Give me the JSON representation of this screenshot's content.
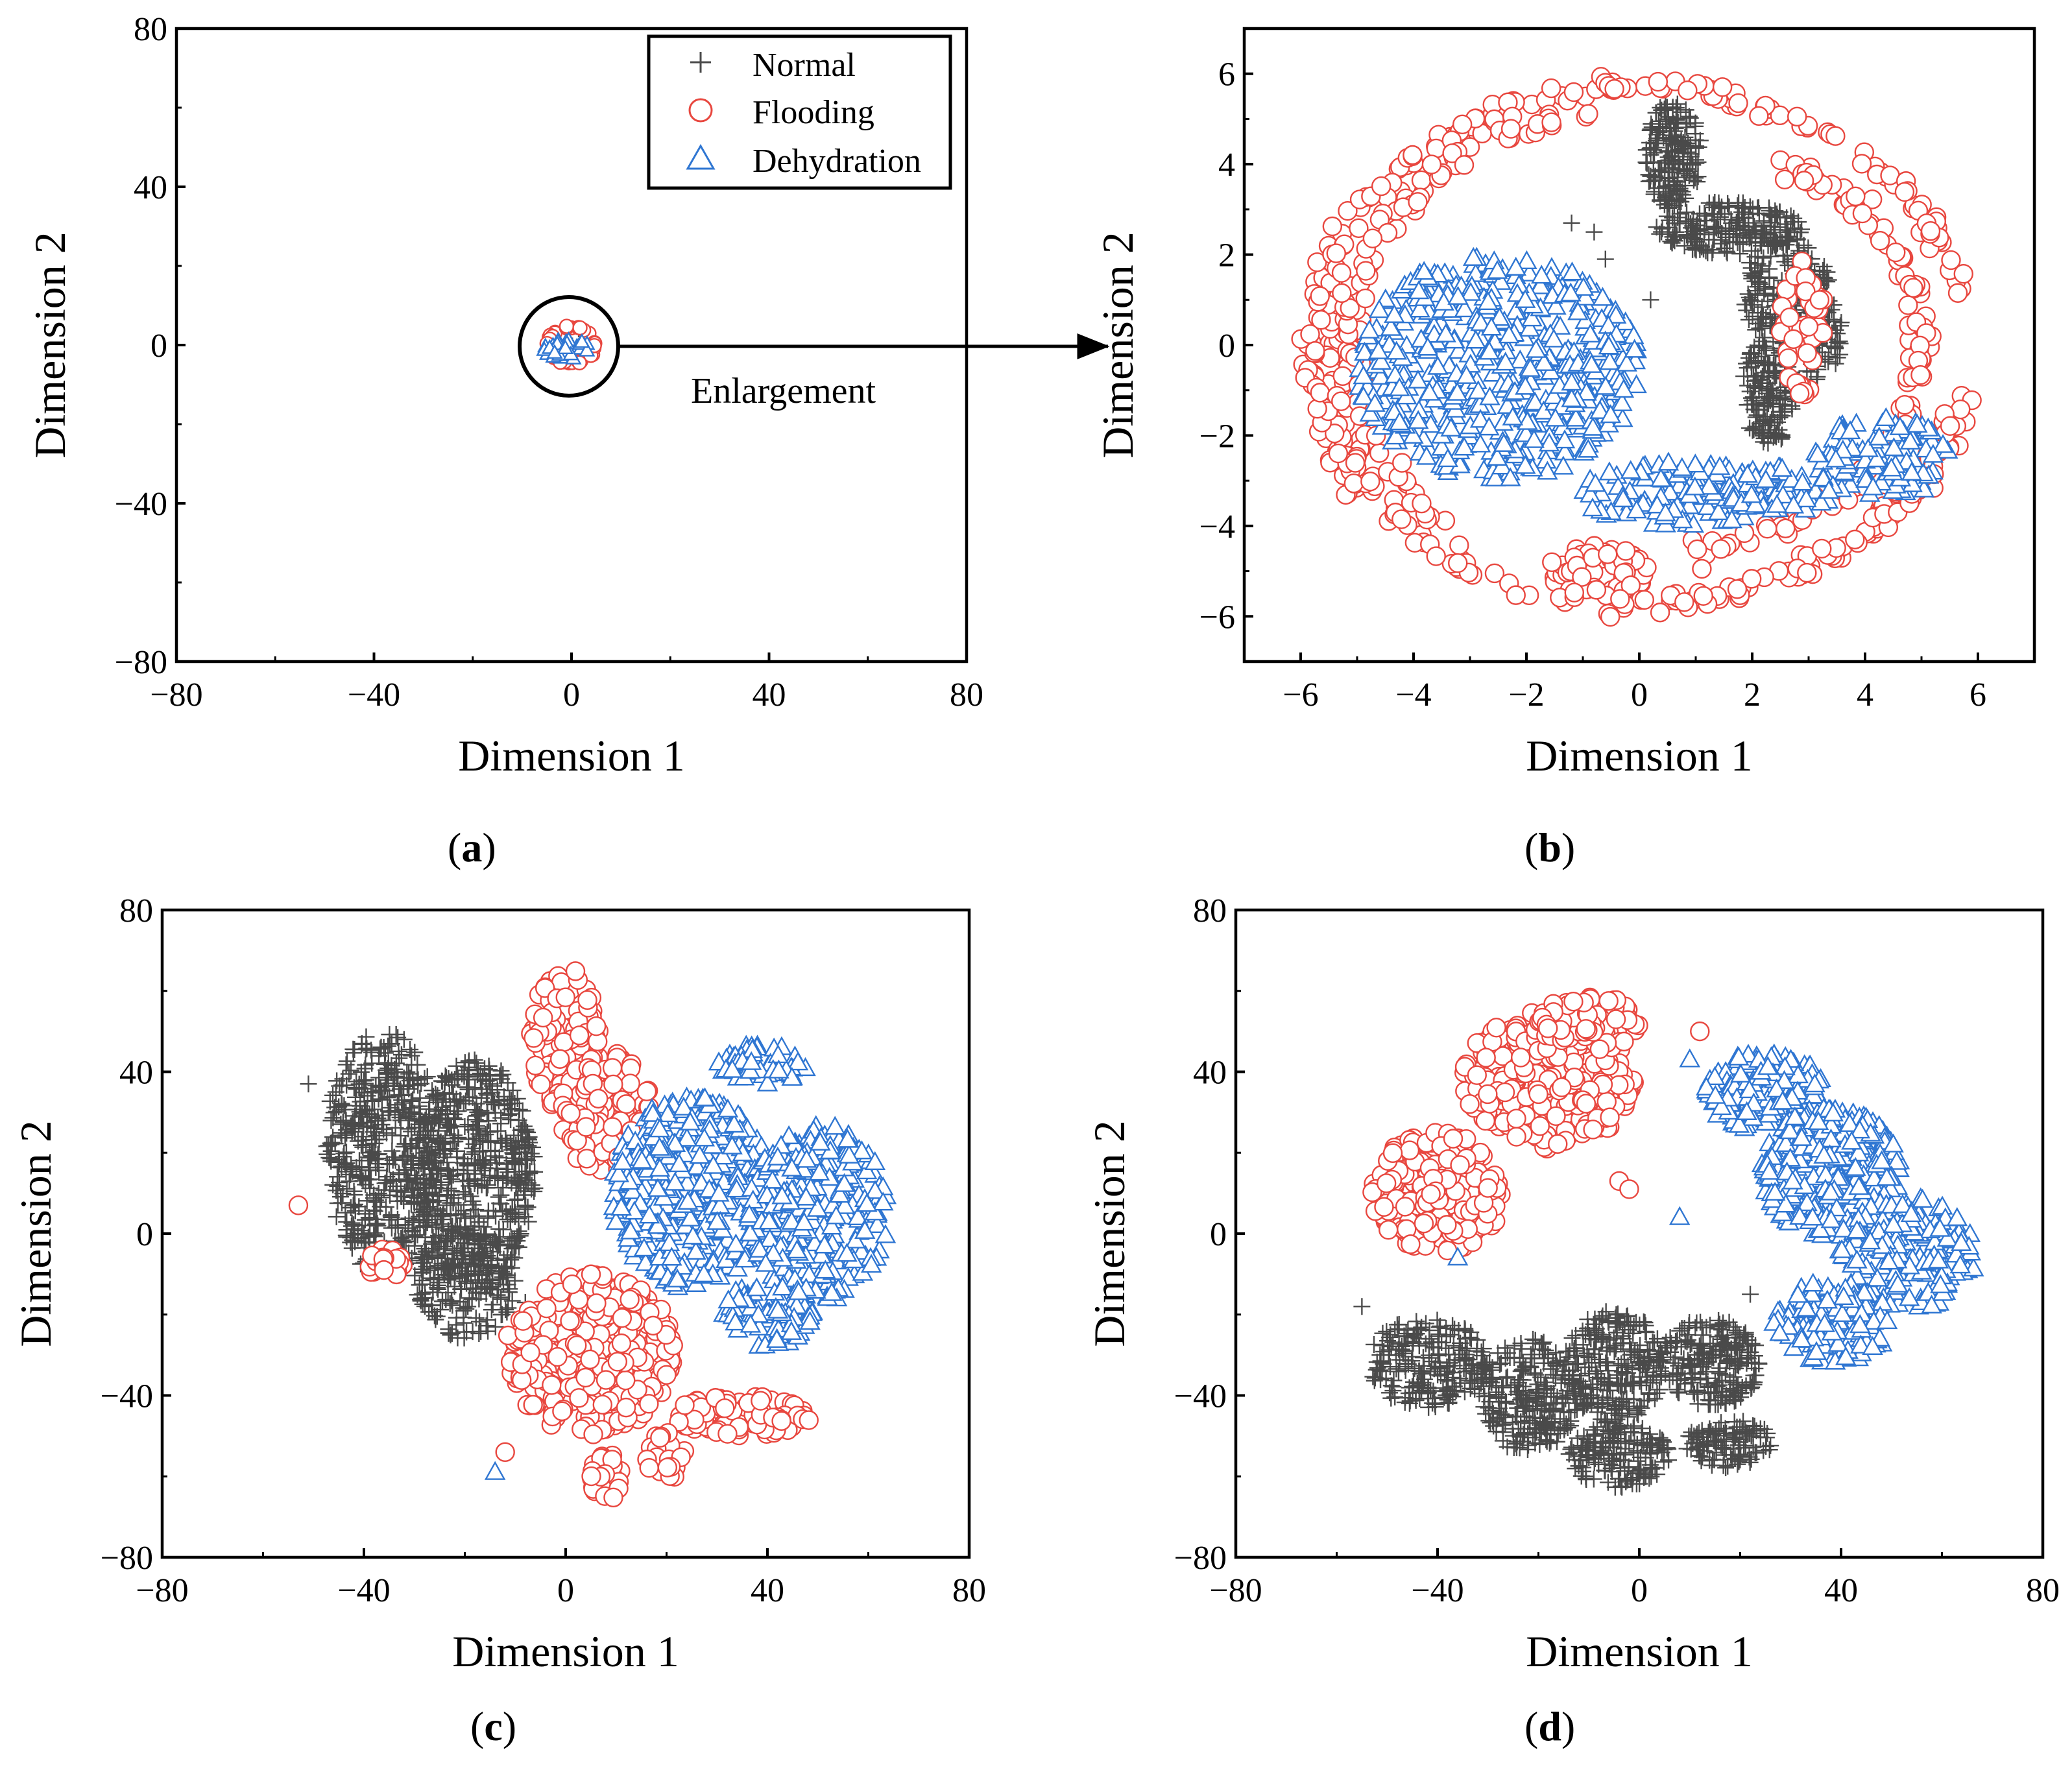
{
  "colors": {
    "normal": "#4a4a4a",
    "flooding": "#e8473f",
    "dehydration": "#2f76d2",
    "axis": "#000000"
  },
  "legend": {
    "items": [
      {
        "key": "normal",
        "label": "Normal",
        "marker": "plus"
      },
      {
        "key": "flooding",
        "label": "Flooding",
        "marker": "circle"
      },
      {
        "key": "dehydration",
        "label": "Dehydration",
        "marker": "triangle"
      }
    ]
  },
  "annotation": {
    "text": "Enlargement"
  },
  "chart_data": [
    {
      "id": "a",
      "type": "scatter",
      "panel_label": "a",
      "xlabel": "Dimension 1",
      "ylabel": "Dimension 2",
      "xlim": [
        -80,
        80
      ],
      "ylim": [
        -80,
        80
      ],
      "xticks": [
        -80,
        -40,
        0,
        40,
        80
      ],
      "yticks": [
        -80,
        -40,
        0,
        40,
        80
      ],
      "xtick_labels": [
        "−80",
        "−40",
        "0",
        "40",
        "80"
      ],
      "ytick_labels": [
        "−80",
        "−40",
        "0",
        "40",
        "80"
      ],
      "legend_position": "top-right",
      "series": [
        {
          "name": "Normal",
          "clusters": [
            {
              "cx": 1,
              "cy": 1,
              "rx": 2,
              "ry": 3,
              "n": 10
            }
          ]
        },
        {
          "name": "Flooding",
          "clusters": [
            {
              "cx": 0,
              "cy": 0,
              "rx": 5,
              "ry": 5,
              "n": 40,
              "ring": true
            }
          ]
        },
        {
          "name": "Dehydration",
          "clusters": [
            {
              "cx": -1,
              "cy": -1,
              "rx": 5,
              "ry": 2.5,
              "n": 30
            }
          ]
        }
      ]
    },
    {
      "id": "b",
      "type": "scatter",
      "panel_label": "b",
      "xlabel": "Dimension 1",
      "ylabel": "Dimension 2",
      "xlim": [
        -7,
        7
      ],
      "ylim": [
        -7,
        7
      ],
      "xticks": [
        -6,
        -4,
        -2,
        0,
        2,
        4,
        6
      ],
      "yticks": [
        -6,
        -4,
        -2,
        0,
        2,
        4,
        6
      ],
      "xtick_labels": [
        "−6",
        "−4",
        "−2",
        "0",
        "2",
        "4",
        "6"
      ],
      "ytick_labels": [
        "−6",
        "−4",
        "−2",
        "0",
        "2",
        "4",
        "6"
      ],
      "series": [
        {
          "name": "Normal",
          "clusters": [
            {
              "cx": 0.6,
              "cy": 4.2,
              "rx": 0.5,
              "ry": 1.2,
              "n": 180
            },
            {
              "cx": 1.6,
              "cy": 2.6,
              "rx": 1.3,
              "ry": 0.6,
              "n": 200
            },
            {
              "cx": 2.6,
              "cy": 1.2,
              "rx": 0.8,
              "ry": 1.2,
              "n": 200
            },
            {
              "cx": 2.3,
              "cy": -1.0,
              "rx": 0.5,
              "ry": 1.2,
              "n": 160
            },
            {
              "cx": 3.2,
              "cy": 0.2,
              "rx": 0.4,
              "ry": 1.0,
              "n": 80
            }
          ],
          "points": [
            [
              -1.2,
              2.7
            ],
            [
              -0.8,
              2.5
            ],
            [
              -0.6,
              1.9
            ],
            [
              0.2,
              1.0
            ]
          ]
        },
        {
          "name": "Flooding",
          "arcs": [
            {
              "cx": 0,
              "cy": 0,
              "rx": 5.8,
              "ry": 5.7,
              "a0": 10,
              "a1": 350,
              "n": 330
            },
            {
              "cx": 0,
              "cy": 0,
              "rx": 5.2,
              "ry": 5.2,
              "a0": 100,
              "a1": 230,
              "n": 90
            },
            {
              "cx": 0.2,
              "cy": 0,
              "rx": 4.8,
              "ry": 4.6,
              "a0": -80,
              "a1": 60,
              "n": 120
            }
          ],
          "clusters": [
            {
              "cx": -0.7,
              "cy": -5.0,
              "rx": 0.9,
              "ry": 0.6,
              "n": 60
            },
            {
              "cx": -5.2,
              "cy": -1.0,
              "rx": 0.4,
              "ry": 2.5,
              "n": 80
            },
            {
              "cx": 2.9,
              "cy": 0.4,
              "rx": 0.4,
              "ry": 1.5,
              "n": 40
            }
          ]
        },
        {
          "name": "Dehydration",
          "clusters": [
            {
              "cx": -2.5,
              "cy": -0.5,
              "rx": 2.5,
              "ry": 2.5,
              "n": 520
            },
            {
              "cx": 0.7,
              "cy": -3.3,
              "rx": 1.8,
              "ry": 0.7,
              "n": 120
            },
            {
              "cx": 4.3,
              "cy": -2.5,
              "rx": 1.2,
              "ry": 0.9,
              "n": 90
            },
            {
              "cx": 2.5,
              "cy": -3.2,
              "rx": 1.0,
              "ry": 0.5,
              "n": 60
            }
          ]
        }
      ]
    },
    {
      "id": "c",
      "type": "scatter",
      "panel_label": "c",
      "xlabel": "Dimension 1",
      "ylabel": "Dimension 2",
      "xlim": [
        -80,
        80
      ],
      "ylim": [
        -80,
        80
      ],
      "xticks": [
        -80,
        -40,
        0,
        40,
        80
      ],
      "yticks": [
        -80,
        -40,
        0,
        40,
        80
      ],
      "xtick_labels": [
        "−80",
        "−40",
        "0",
        "40",
        "80"
      ],
      "ytick_labels": [
        "−80",
        "−40",
        "0",
        "40",
        "80"
      ],
      "series": [
        {
          "name": "Normal",
          "clusters": [
            {
              "cx": -36,
              "cy": 20,
              "rx": 12,
              "ry": 30,
              "n": 520
            },
            {
              "cx": -18,
              "cy": 15,
              "rx": 12,
              "ry": 28,
              "n": 520
            },
            {
              "cx": -20,
              "cy": -12,
              "rx": 10,
              "ry": 14,
              "n": 200
            }
          ],
          "points": [
            [
              -51,
              37
            ],
            [
              -8,
              -17
            ]
          ]
        },
        {
          "name": "Flooding",
          "clusters": [
            {
              "cx": 0,
              "cy": 48,
              "rx": 7,
              "ry": 18,
              "n": 120
            },
            {
              "cx": 8,
              "cy": 30,
              "rx": 9,
              "ry": 15,
              "n": 110
            },
            {
              "cx": 5,
              "cy": -30,
              "rx": 17,
              "ry": 20,
              "n": 380
            },
            {
              "cx": 35,
              "cy": -45,
              "rx": 14,
              "ry": 5,
              "n": 90
            },
            {
              "cx": 8,
              "cy": -60,
              "rx": 3,
              "ry": 6,
              "n": 30
            },
            {
              "cx": -36,
              "cy": -7,
              "rx": 4,
              "ry": 5,
              "n": 20
            },
            {
              "cx": 20,
              "cy": -55,
              "rx": 4,
              "ry": 6,
              "n": 30
            }
          ],
          "points": [
            [
              -53,
              7
            ],
            [
              -12,
              -54
            ]
          ]
        },
        {
          "name": "Dehydration",
          "clusters": [
            {
              "cx": 25,
              "cy": 10,
              "rx": 16,
              "ry": 24,
              "n": 420
            },
            {
              "cx": 50,
              "cy": 5,
              "rx": 14,
              "ry": 22,
              "n": 320
            },
            {
              "cx": 39,
              "cy": 42,
              "rx": 9,
              "ry": 5,
              "n": 60
            },
            {
              "cx": 40,
              "cy": -20,
              "rx": 9,
              "ry": 8,
              "n": 90
            }
          ],
          "points": [
            [
              -14,
              -59
            ]
          ]
        }
      ]
    },
    {
      "id": "d",
      "type": "scatter",
      "panel_label": "d",
      "xlabel": "Dimension 1",
      "ylabel": "Dimension 2",
      "xlim": [
        -80,
        80
      ],
      "ylim": [
        -80,
        80
      ],
      "xticks": [
        -80,
        -40,
        0,
        40,
        80
      ],
      "yticks": [
        -80,
        -40,
        0,
        40,
        80
      ],
      "xtick_labels": [
        "−80",
        "−40",
        "0",
        "40",
        "80"
      ],
      "ytick_labels": [
        "−80",
        "−40",
        "0",
        "40",
        "80"
      ],
      "series": [
        {
          "name": "Normal",
          "clusters": [
            {
              "cx": -42,
              "cy": -32,
              "rx": 12,
              "ry": 11,
              "n": 220
            },
            {
              "cx": -22,
              "cy": -40,
              "rx": 10,
              "ry": 14,
              "n": 250
            },
            {
              "cx": -5,
              "cy": -33,
              "rx": 10,
              "ry": 14,
              "n": 250
            },
            {
              "cx": 14,
              "cy": -32,
              "rx": 10,
              "ry": 11,
              "n": 220
            },
            {
              "cx": -4,
              "cy": -55,
              "rx": 10,
              "ry": 8,
              "n": 160
            },
            {
              "cx": 18,
              "cy": -52,
              "rx": 9,
              "ry": 6,
              "n": 110
            }
          ],
          "points": [
            [
              -55,
              -18
            ],
            [
              22,
              -15
            ]
          ]
        },
        {
          "name": "Flooding",
          "clusters": [
            {
              "cx": -40,
              "cy": 10,
              "rx": 13,
              "ry": 15,
              "n": 230
            },
            {
              "cx": -18,
              "cy": 38,
              "rx": 17,
              "ry": 17,
              "n": 340
            },
            {
              "cx": -10,
              "cy": 52,
              "rx": 10,
              "ry": 7,
              "n": 80
            }
          ],
          "points": [
            [
              12,
              50
            ],
            [
              -4,
              13
            ],
            [
              -2,
              11
            ]
          ]
        },
        {
          "name": "Dehydration",
          "clusters": [
            {
              "cx": 25,
              "cy": 35,
              "rx": 12,
              "ry": 10,
              "n": 170
            },
            {
              "cx": 38,
              "cy": 15,
              "rx": 14,
              "ry": 16,
              "n": 330
            },
            {
              "cx": 53,
              "cy": -5,
              "rx": 14,
              "ry": 14,
              "n": 230
            },
            {
              "cx": 38,
              "cy": -22,
              "rx": 12,
              "ry": 10,
              "n": 150
            }
          ],
          "points": [
            [
              8,
              4
            ],
            [
              -36,
              -6
            ],
            [
              10,
              43
            ]
          ]
        }
      ]
    }
  ]
}
